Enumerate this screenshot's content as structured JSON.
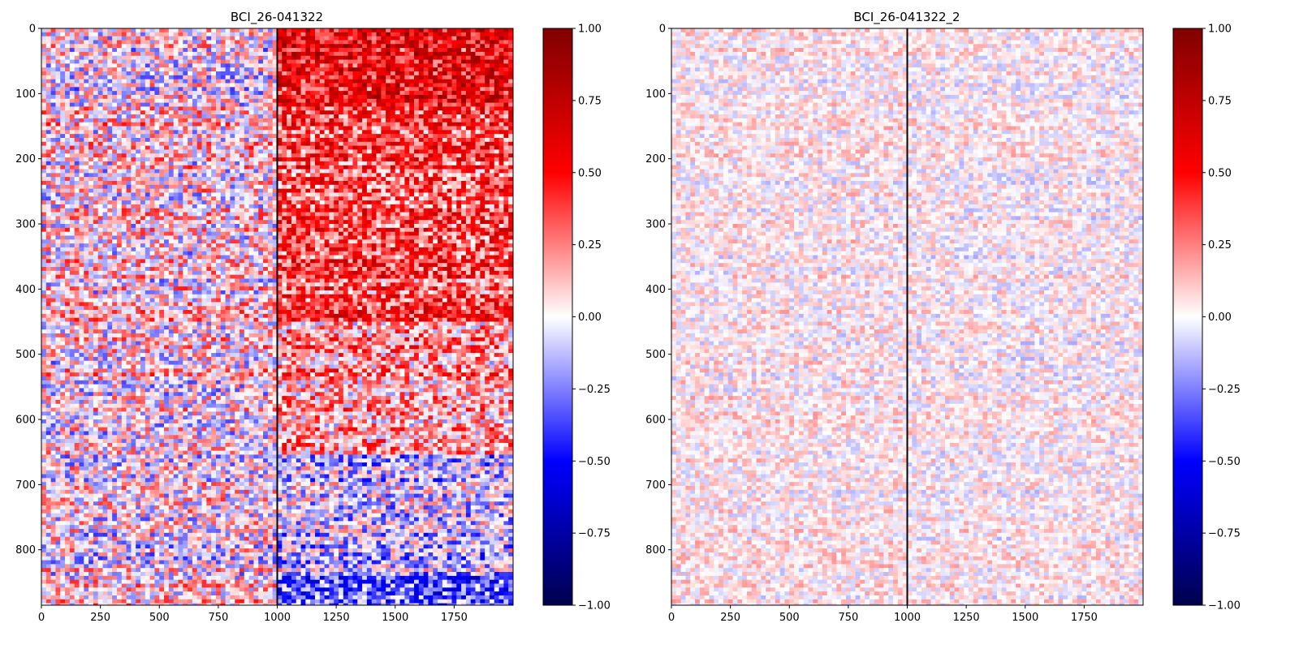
{
  "chart_data": [
    {
      "type": "heatmap",
      "title": "BCI_26-041322",
      "xlabel": "",
      "ylabel": "",
      "xlim": [
        0,
        2000
      ],
      "ylim": [
        885,
        0
      ],
      "x_ticks": [
        0,
        250,
        500,
        750,
        1000,
        1250,
        1500,
        1750
      ],
      "y_ticks": [
        0,
        100,
        200,
        300,
        400,
        500,
        600,
        700,
        800
      ],
      "vline_x": 1000,
      "colormap": "seismic",
      "colorbar": {
        "range": [
          -1.0,
          1.0
        ],
        "ticks": [
          "1.00",
          "0.75",
          "0.50",
          "0.25",
          "0.00",
          "−0.25",
          "−0.50",
          "−0.75",
          "−1.00"
        ]
      },
      "regions": [
        {
          "rows": [
            0,
            120
          ],
          "before_onset_mean": 0.0,
          "after_onset_mean": 0.55
        },
        {
          "rows": [
            120,
            450
          ],
          "before_onset_mean": 0.05,
          "after_onset_mean": 0.35
        },
        {
          "rows": [
            450,
            650
          ],
          "before_onset_mean": 0.05,
          "after_onset_mean": 0.2
        },
        {
          "rows": [
            650,
            840
          ],
          "before_onset_mean": 0.0,
          "after_onset_mean": -0.1
        },
        {
          "rows": [
            840,
            885
          ],
          "before_onset_mean": 0.05,
          "after_onset_mean": -0.35
        }
      ],
      "noise_amplitude": 0.35
    },
    {
      "type": "heatmap",
      "title": "BCI_26-041322_2",
      "xlabel": "",
      "ylabel": "",
      "xlim": [
        0,
        2000
      ],
      "ylim": [
        885,
        0
      ],
      "x_ticks": [
        0,
        250,
        500,
        750,
        1000,
        1250,
        1500,
        1750
      ],
      "y_ticks": [
        0,
        100,
        200,
        300,
        400,
        500,
        600,
        700,
        800
      ],
      "vline_x": 1000,
      "colormap": "seismic",
      "colorbar": {
        "range": [
          -1.0,
          1.0
        ],
        "ticks": [
          "1.00",
          "0.75",
          "0.50",
          "0.25",
          "0.00",
          "−0.25",
          "−0.50",
          "−0.75",
          "−1.00"
        ]
      },
      "regions": [
        {
          "rows": [
            0,
            885
          ],
          "before_onset_mean": 0.03,
          "after_onset_mean": 0.02
        }
      ],
      "noise_amplitude": 0.15
    }
  ]
}
